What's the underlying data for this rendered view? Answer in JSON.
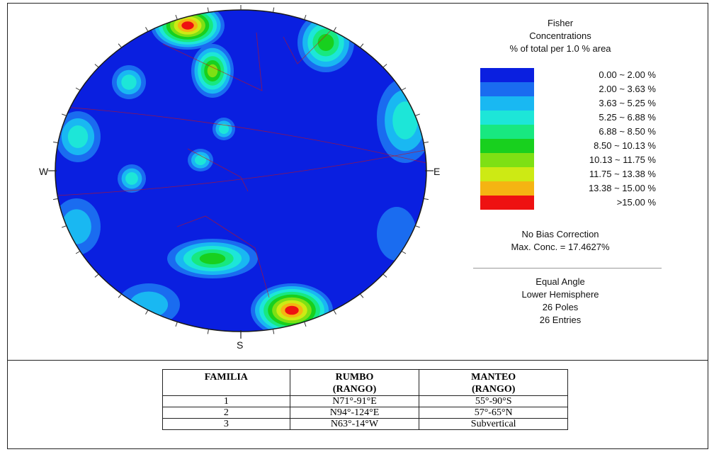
{
  "stereonet": {
    "compass": {
      "north": "",
      "south": "S",
      "east": "E",
      "west": "W"
    },
    "colors": {
      "background": "#0a1fe0",
      "outline": "#1a1a1a",
      "planes": "#cc1111"
    }
  },
  "legend": {
    "title": "Fisher",
    "subtitle": "Concentrations",
    "unit_line": "% of total per 1.0 % area",
    "classes": [
      {
        "label": "0.00 ~  2.00 %",
        "color": "#0a1fe0"
      },
      {
        "label": "2.00 ~  3.63 %",
        "color": "#1a6cf0"
      },
      {
        "label": "3.63 ~  5.25 %",
        "color": "#19b8f2"
      },
      {
        "label": "5.25 ~  6.88 %",
        "color": "#1de6d8"
      },
      {
        "label": "6.88 ~  8.50 %",
        "color": "#18e880"
      },
      {
        "label": "8.50 ~ 10.13 %",
        "color": "#18d01e"
      },
      {
        "label": "10.13 ~ 11.75 %",
        "color": "#7ee014"
      },
      {
        "label": "11.75 ~ 13.38 %",
        "color": "#cdea14"
      },
      {
        "label": "13.38 ~ 15.00 %",
        "color": "#f5b412"
      },
      {
        "label": ">15.00 %",
        "color": "#ee1111"
      }
    ],
    "bias": "No Bias Correction",
    "max_conc": "Max. Conc. = 17.4627%",
    "projection": "Equal Angle",
    "hemisphere": "Lower Hemisphere",
    "poles": "26 Poles",
    "entries": "26 Entries"
  },
  "table": {
    "headers": [
      {
        "line1": "FAMILIA",
        "line2": ""
      },
      {
        "line1": "RUMBO",
        "line2": "(RANGO)"
      },
      {
        "line1": "MANTEO",
        "line2": "(RANGO)"
      }
    ],
    "rows": [
      [
        "1",
        "N71°-91°E",
        "55°-90°S"
      ],
      [
        "2",
        "N94°-124°E",
        "57°-65°N"
      ],
      [
        "3",
        "N63°-14°W",
        "Subvertical"
      ]
    ]
  }
}
